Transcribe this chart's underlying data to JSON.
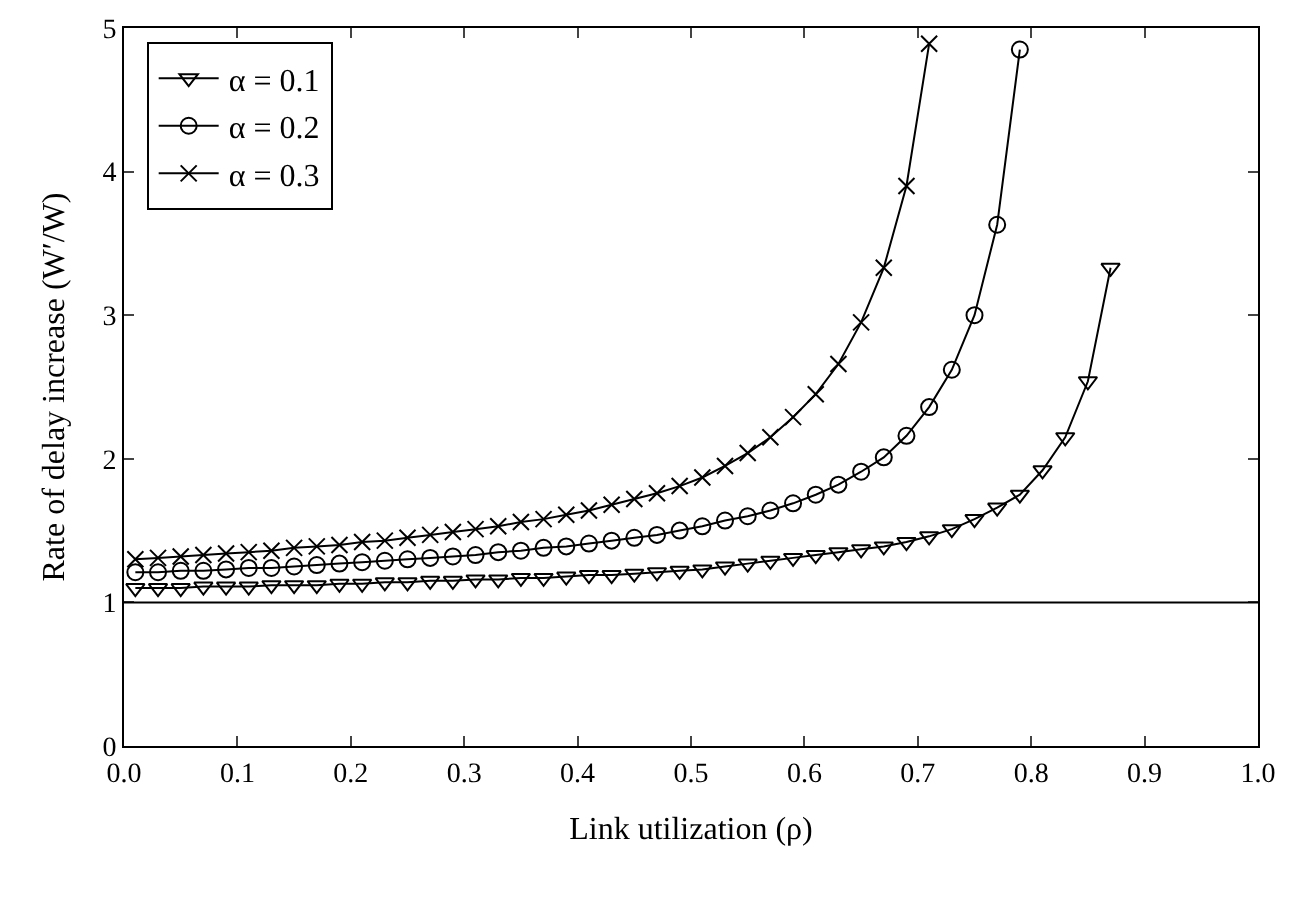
{
  "chart_data": {
    "type": "line",
    "xlabel": "Link utilization (ρ)",
    "ylabel": "Rate of delay increase (W′/W)",
    "xlim": [
      0,
      1
    ],
    "xticks": [
      {
        "value": 0,
        "label": "0.0"
      },
      0.1,
      0.2,
      0.3,
      0.4,
      0.5,
      0.6,
      0.7,
      0.8,
      0.9,
      {
        "value": 1,
        "label": "1.0"
      }
    ],
    "ylim": [
      0,
      5
    ],
    "yticks": [
      0,
      1,
      2,
      3,
      4,
      5
    ],
    "legend": "top left",
    "line_style": "solid",
    "ref_lines": [
      {
        "axis": "y",
        "value": 1,
        "color": "#000000"
      }
    ],
    "series": [
      {
        "name": "α = 0.1",
        "color": "#000000",
        "marker": "triangle",
        "x": [
          0.01,
          0.03,
          0.05,
          0.07,
          0.09,
          0.11,
          0.13,
          0.15,
          0.17,
          0.19,
          0.21,
          0.23,
          0.25,
          0.27,
          0.29,
          0.31,
          0.33,
          0.35,
          0.37,
          0.39,
          0.41,
          0.43,
          0.45,
          0.47,
          0.49,
          0.51,
          0.53,
          0.55,
          0.57,
          0.59,
          0.61,
          0.63,
          0.65,
          0.67,
          0.69,
          0.71,
          0.73,
          0.75,
          0.77,
          0.79,
          0.81,
          0.83,
          0.85,
          0.87
        ],
        "values": [
          1.1,
          1.1,
          1.1,
          1.11,
          1.11,
          1.11,
          1.12,
          1.12,
          1.12,
          1.13,
          1.13,
          1.14,
          1.14,
          1.15,
          1.15,
          1.16,
          1.16,
          1.17,
          1.17,
          1.18,
          1.19,
          1.19,
          1.2,
          1.21,
          1.22,
          1.23,
          1.25,
          1.27,
          1.29,
          1.31,
          1.33,
          1.35,
          1.37,
          1.39,
          1.42,
          1.46,
          1.51,
          1.58,
          1.66,
          1.75,
          1.92,
          2.15,
          2.54,
          3.33
        ]
      },
      {
        "name": "α = 0.2",
        "color": "#000000",
        "marker": "circle",
        "x": [
          0.01,
          0.03,
          0.05,
          0.07,
          0.09,
          0.11,
          0.13,
          0.15,
          0.17,
          0.19,
          0.21,
          0.23,
          0.25,
          0.27,
          0.29,
          0.31,
          0.33,
          0.35,
          0.37,
          0.39,
          0.41,
          0.43,
          0.45,
          0.47,
          0.49,
          0.51,
          0.53,
          0.55,
          0.57,
          0.59,
          0.61,
          0.63,
          0.65,
          0.67,
          0.69,
          0.71,
          0.73,
          0.75,
          0.77,
          0.79
        ],
        "values": [
          1.21,
          1.21,
          1.22,
          1.22,
          1.23,
          1.24,
          1.24,
          1.25,
          1.26,
          1.27,
          1.28,
          1.29,
          1.3,
          1.31,
          1.32,
          1.33,
          1.35,
          1.36,
          1.38,
          1.39,
          1.41,
          1.43,
          1.45,
          1.47,
          1.5,
          1.53,
          1.57,
          1.6,
          1.64,
          1.69,
          1.75,
          1.82,
          1.91,
          2.01,
          2.16,
          2.36,
          2.62,
          3.0,
          3.63,
          4.85
        ]
      },
      {
        "name": "α = 0.3",
        "color": "#000000",
        "marker": "cross",
        "x": [
          0.01,
          0.03,
          0.05,
          0.07,
          0.09,
          0.11,
          0.13,
          0.15,
          0.17,
          0.19,
          0.21,
          0.23,
          0.25,
          0.27,
          0.29,
          0.31,
          0.33,
          0.35,
          0.37,
          0.39,
          0.41,
          0.43,
          0.45,
          0.47,
          0.49,
          0.51,
          0.53,
          0.55,
          0.57,
          0.59,
          0.61,
          0.63,
          0.65,
          0.67,
          0.69,
          0.71
        ],
        "values": [
          1.3,
          1.31,
          1.32,
          1.33,
          1.34,
          1.35,
          1.36,
          1.38,
          1.39,
          1.4,
          1.42,
          1.43,
          1.45,
          1.47,
          1.49,
          1.51,
          1.53,
          1.56,
          1.58,
          1.61,
          1.64,
          1.68,
          1.72,
          1.76,
          1.81,
          1.87,
          1.95,
          2.04,
          2.15,
          2.29,
          2.45,
          2.66,
          2.95,
          3.33,
          3.9,
          4.89
        ]
      }
    ]
  }
}
